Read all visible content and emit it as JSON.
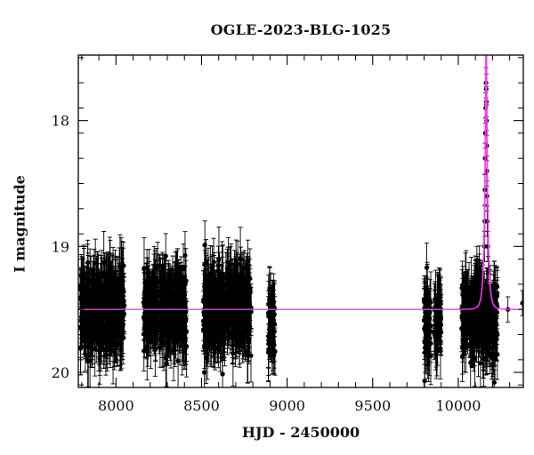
{
  "chart_data": {
    "type": "scatter",
    "title": "OGLE-2023-BLG-1025",
    "xlabel": "HJD - 2450000",
    "ylabel": "I magnitude",
    "xlim": [
      7780,
      10380
    ],
    "ylim": [
      20.12,
      17.48
    ],
    "y_inverted": true,
    "grid": false,
    "x_ticks_major": [
      8000,
      8500,
      9000,
      9500,
      10000
    ],
    "x_tick_labels": [
      "8000",
      "8500",
      "9000",
      "9500",
      "10000"
    ],
    "y_ticks_major": [
      18,
      19,
      20
    ],
    "y_tick_labels": [
      "18",
      "19",
      "20"
    ],
    "point_color": "#000000",
    "model_color": "#ff33ff",
    "observing_seasons": [
      {
        "x_start": 7790,
        "x_end": 8050,
        "mag_mean": 19.5,
        "mag_scatter": 0.28,
        "err": 0.2
      },
      {
        "x_start": 8160,
        "x_end": 8415,
        "mag_mean": 19.5,
        "mag_scatter": 0.28,
        "err": 0.2
      },
      {
        "x_start": 8510,
        "x_end": 8790,
        "mag_mean": 19.5,
        "mag_scatter": 0.28,
        "err": 0.2
      },
      {
        "x_start": 8890,
        "x_end": 8930,
        "mag_mean": 19.6,
        "mag_scatter": 0.22,
        "err": 0.2
      },
      {
        "x_start": 9800,
        "x_end": 9840,
        "mag_mean": 19.6,
        "mag_scatter": 0.25,
        "err": 0.2
      },
      {
        "x_start": 9860,
        "x_end": 9900,
        "mag_mean": 19.6,
        "mag_scatter": 0.25,
        "err": 0.2
      },
      {
        "x_start": 10020,
        "x_end": 10230,
        "mag_mean": 19.55,
        "mag_scatter": 0.25,
        "err": 0.2
      }
    ],
    "event_points": [
      {
        "x": 10158,
        "y": 18.1
      },
      {
        "x": 10160,
        "y": 17.9
      },
      {
        "x": 10162,
        "y": 17.7
      },
      {
        "x": 10163,
        "y": 17.75
      },
      {
        "x": 10164,
        "y": 17.85
      },
      {
        "x": 10165,
        "y": 18.0
      },
      {
        "x": 10166,
        "y": 18.2
      },
      {
        "x": 10167,
        "y": 18.4
      },
      {
        "x": 10168,
        "y": 18.6
      },
      {
        "x": 10169,
        "y": 18.8
      },
      {
        "x": 10157,
        "y": 18.3
      },
      {
        "x": 10156,
        "y": 18.55
      },
      {
        "x": 10155,
        "y": 18.8
      },
      {
        "x": 10153,
        "y": 19.0
      },
      {
        "x": 10172,
        "y": 19.0
      },
      {
        "x": 10175,
        "y": 19.2
      }
    ],
    "isolated_points": [
      {
        "x": 10375,
        "y": 19.45
      },
      {
        "x": 10290,
        "y": 19.5
      },
      {
        "x": 10210,
        "y": 20.08
      }
    ],
    "model": {
      "baseline": 19.5,
      "t0": 10163,
      "tE": 18,
      "u0": 0.12
    }
  }
}
